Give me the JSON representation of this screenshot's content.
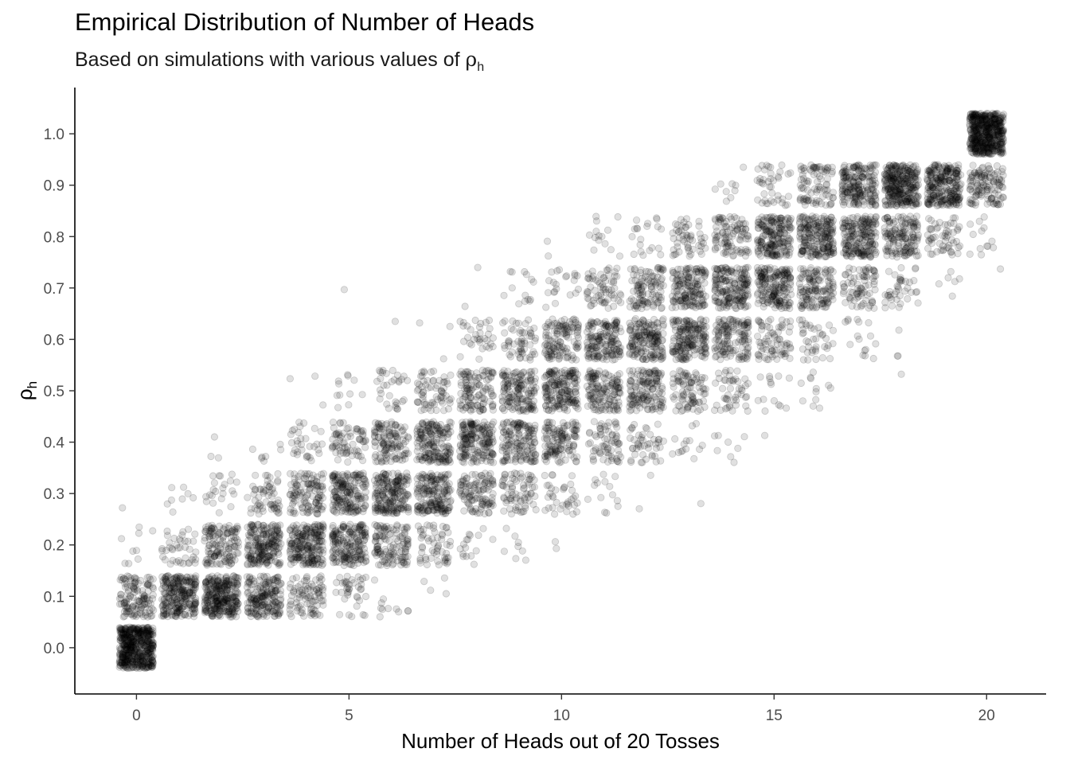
{
  "chart_data": {
    "type": "scatter",
    "title": "Empirical Distribution of Number of Heads",
    "subtitle_text": "Based on simulations with various values of",
    "subtitle_symbol": "ρ",
    "subtitle_subscript": "h",
    "xlabel": "Number of Heads out of 20 Tosses",
    "ylabel_symbol": "ρ",
    "ylabel_subscript": "h",
    "xlim": [
      -1.45,
      21.4
    ],
    "ylim": [
      -0.09,
      1.09
    ],
    "x_ticks": [
      0,
      5,
      10,
      15,
      20
    ],
    "x_tick_labels": [
      "0",
      "5",
      "10",
      "15",
      "20"
    ],
    "y_ticks": [
      0.0,
      0.1,
      0.2,
      0.3,
      0.4,
      0.5,
      0.6,
      0.7,
      0.8,
      0.9,
      1.0
    ],
    "y_tick_labels": [
      "0.0",
      "0.1",
      "0.2",
      "0.3",
      "0.4",
      "0.5",
      "0.6",
      "0.7",
      "0.8",
      "0.9",
      "1.0"
    ],
    "p_values": [
      0.0,
      0.1,
      0.2,
      0.3,
      0.4,
      0.5,
      0.6,
      0.7,
      0.8,
      0.9,
      1.0
    ],
    "n_tosses": 20,
    "jitter_x": 0.4,
    "jitter_y": 0.04,
    "point_color": "#000000",
    "point_alpha": 0.12,
    "grid": false,
    "legend": "none"
  }
}
